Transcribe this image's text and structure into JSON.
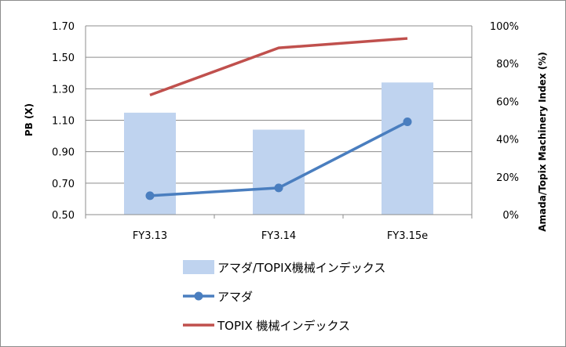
{
  "chart_data": {
    "type": "bar",
    "categories": [
      "FY3.13",
      "FY3.14",
      "FY3.15e"
    ],
    "y_left": {
      "label": "PB (X)",
      "range": [
        0.5,
        1.7
      ],
      "ticks": [
        "0.50",
        "0.70",
        "0.90",
        "1.10",
        "1.30",
        "1.50",
        "1.70"
      ]
    },
    "y_right": {
      "label": "Amada/Topix Machinery Index (%)",
      "range": [
        0,
        100
      ],
      "ticks": [
        "0%",
        "20%",
        "40%",
        "60%",
        "80%",
        "100%"
      ]
    },
    "grid": true,
    "legend_position": "bottom",
    "series": [
      {
        "name": "アマダ/TOPIX機械インデックス",
        "type": "bar",
        "axis": "right",
        "values": [
          54,
          45,
          70
        ],
        "color": "#bfd3ef"
      },
      {
        "name": "アマダ",
        "type": "line",
        "axis": "left",
        "marker": "circle",
        "values": [
          0.62,
          0.67,
          1.09
        ],
        "color": "#4a7ebf"
      },
      {
        "name": "TOPIX 機械インデックス",
        "type": "line",
        "axis": "left",
        "marker": "none",
        "values": [
          1.26,
          1.56,
          1.62
        ],
        "color": "#c0504d"
      }
    ]
  }
}
